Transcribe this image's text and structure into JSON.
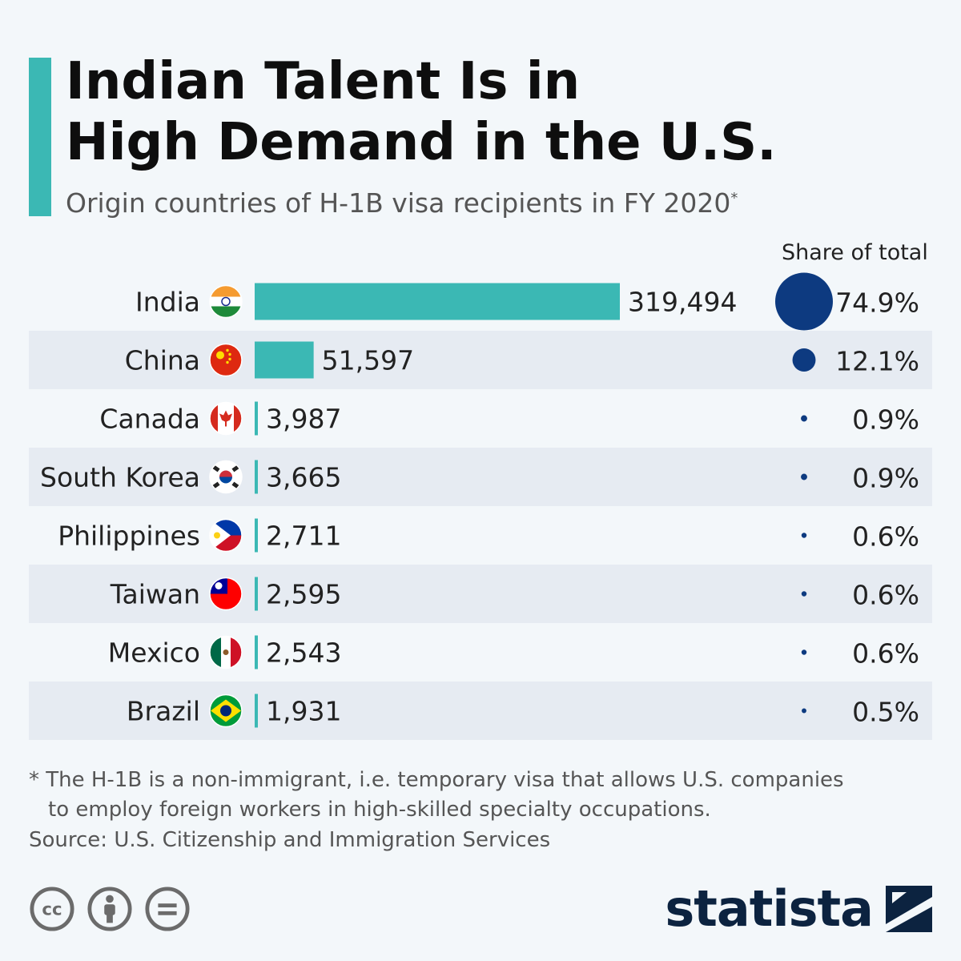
{
  "header": {
    "title": "Indian Talent Is in\nHigh Demand in the U.S.",
    "subtitle": "Origin countries of H-1B visa recipients in FY 2020",
    "subtitle_marker": "*"
  },
  "share_header": "Share of total",
  "colors": {
    "bar": "#3bb8b4",
    "bubble": "#0d3a80",
    "row_stripe": "#e6ebf2",
    "accent": "#3bb8b4",
    "brand": "#0c2340"
  },
  "chart_data": {
    "type": "bar",
    "orientation": "horizontal",
    "categories": [
      "India",
      "China",
      "Canada",
      "South Korea",
      "Philippines",
      "Taiwan",
      "Mexico",
      "Brazil"
    ],
    "values": [
      319494,
      51597,
      3987,
      3665,
      2711,
      2595,
      2543,
      1931
    ],
    "value_labels": [
      "319,494",
      "51,597",
      "3,987",
      "3,665",
      "2,711",
      "2,595",
      "2,543",
      "1,931"
    ],
    "flag_icons": [
      "india-flag-icon",
      "china-flag-icon",
      "canada-flag-icon",
      "south-korea-flag-icon",
      "philippines-flag-icon",
      "taiwan-flag-icon",
      "mexico-flag-icon",
      "brazil-flag-icon"
    ],
    "share_values": [
      74.9,
      12.1,
      0.9,
      0.9,
      0.6,
      0.6,
      0.6,
      0.5
    ],
    "share_labels": [
      "74.9%",
      "12.1%",
      "0.9%",
      "0.9%",
      "0.6%",
      "0.6%",
      "0.6%",
      "0.5%"
    ],
    "title": "Indian Talent Is in High Demand in the U.S.",
    "subtitle": "Origin countries of H-1B visa recipients in FY 2020",
    "xlabel": "",
    "ylabel": "",
    "share_title": "Share of total"
  },
  "footnote": {
    "line1": "* The H-1B is a non-immigrant, i.e. temporary visa that allows U.S. companies",
    "line2": "to employ foreign workers in high-skilled specialty occupations."
  },
  "source": "Source: U.S. Citizenship and Immigration Services",
  "license_icons": [
    "creative-commons-icon",
    "attribution-icon",
    "no-derivatives-icon"
  ],
  "brand": {
    "name": "statista",
    "icon": "statista-logo-icon"
  }
}
